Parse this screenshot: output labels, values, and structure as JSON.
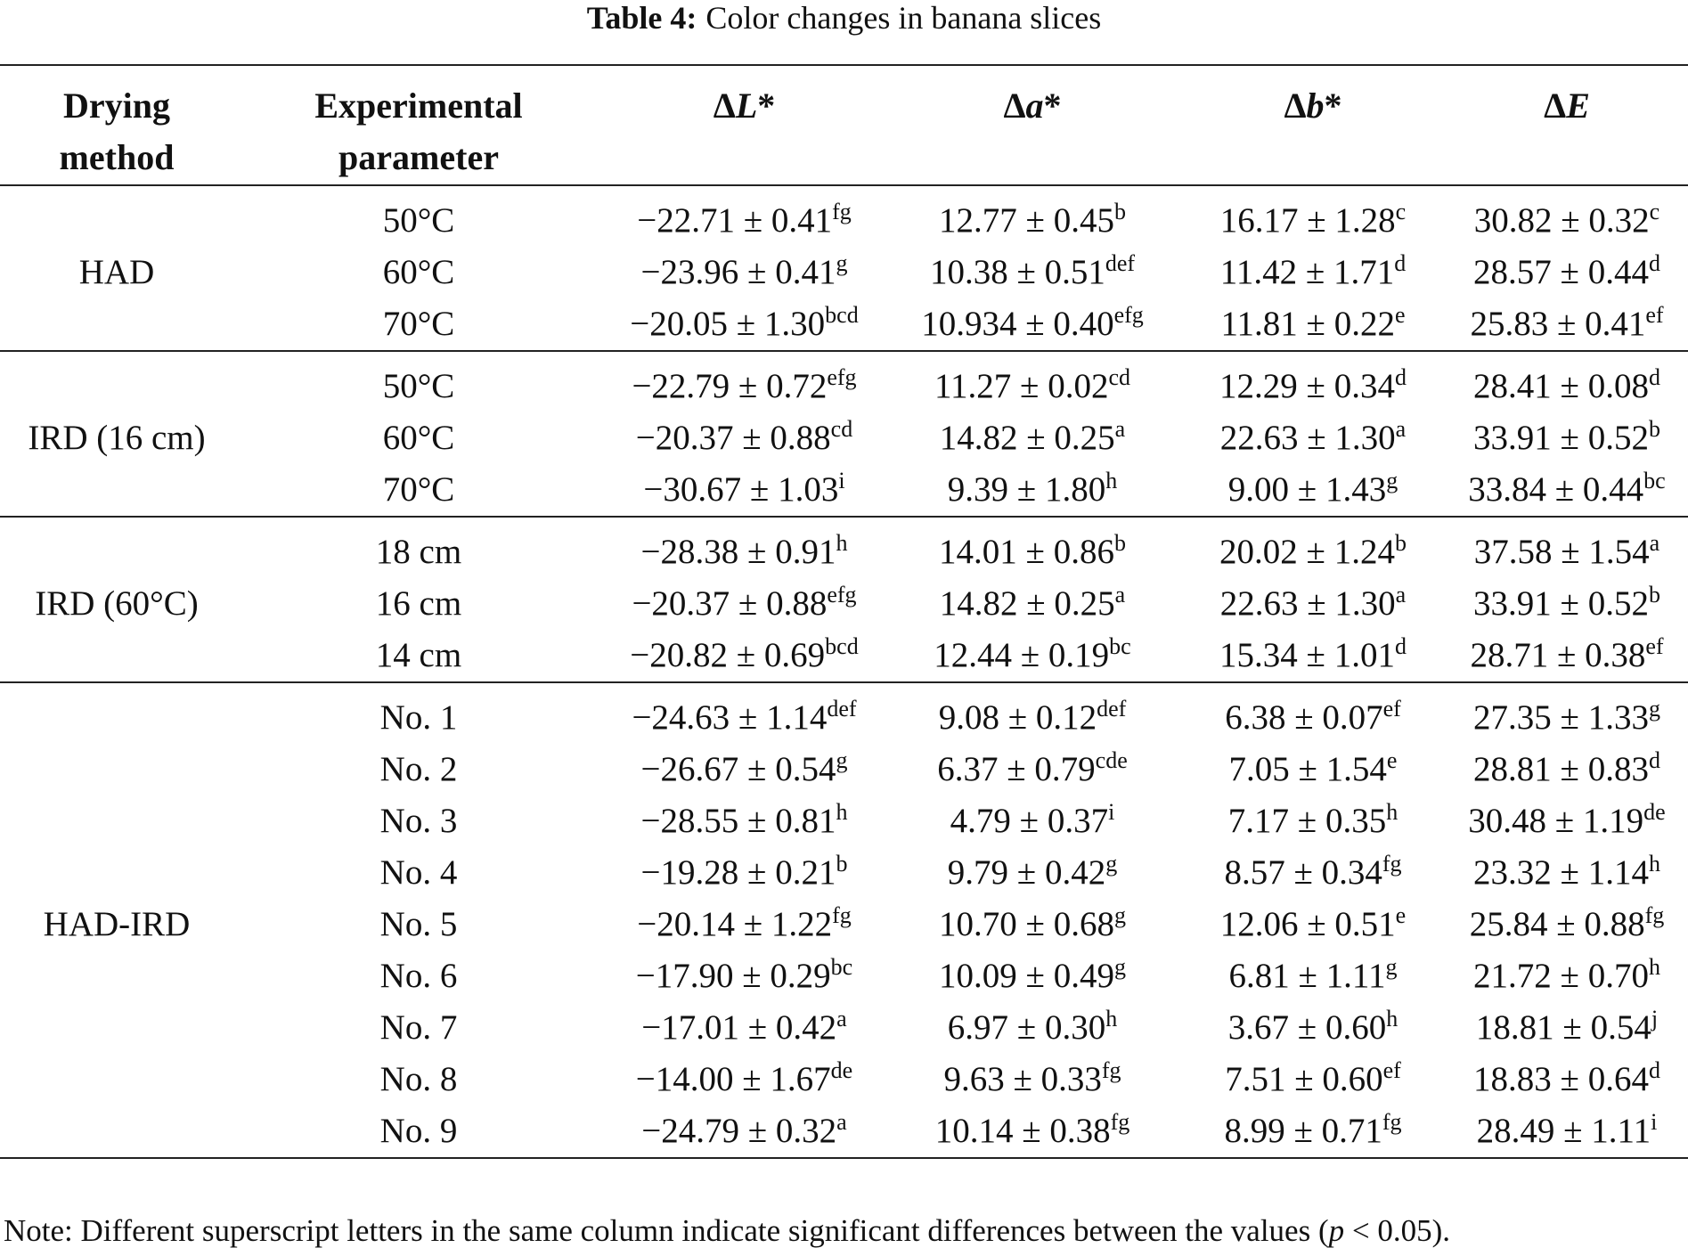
{
  "caption": {
    "label": "Table 4:",
    "text": "Color changes in banana slices"
  },
  "headers": {
    "method_line1": "Drying",
    "method_line2": "method",
    "param_line1": "Experimental",
    "param_line2": "parameter",
    "dL": {
      "delta": "Δ",
      "sym": "L",
      "star": "*"
    },
    "da": {
      "delta": "Δ",
      "sym": "a",
      "star": "*"
    },
    "db": {
      "delta": "Δ",
      "sym": "b",
      "star": "*"
    },
    "dE": {
      "delta": "Δ",
      "sym": "E",
      "star": ""
    }
  },
  "groups": [
    {
      "method": "HAD",
      "rows": [
        {
          "param": "50°C",
          "dL": "−22.71 ± 0.41",
          "dL_sup": "fg",
          "da": "12.77 ± 0.45",
          "da_sup": "b",
          "db": "16.17 ± 1.28",
          "db_sup": "c",
          "dE": "30.82 ± 0.32",
          "dE_sup": "c"
        },
        {
          "param": "60°C",
          "dL": "−23.96 ± 0.41",
          "dL_sup": "g",
          "da": "10.38 ± 0.51",
          "da_sup": "def",
          "db": "11.42 ± 1.71",
          "db_sup": "d",
          "dE": "28.57 ± 0.44",
          "dE_sup": "d"
        },
        {
          "param": "70°C",
          "dL": "−20.05 ± 1.30",
          "dL_sup": "bcd",
          "da": "10.934 ± 0.40",
          "da_sup": "efg",
          "db": "11.81 ± 0.22",
          "db_sup": "e",
          "dE": "25.83 ± 0.41",
          "dE_sup": "ef"
        }
      ]
    },
    {
      "method": "IRD (16 cm)",
      "rows": [
        {
          "param": "50°C",
          "dL": "−22.79 ± 0.72",
          "dL_sup": "efg",
          "da": "11.27 ± 0.02",
          "da_sup": "cd",
          "db": "12.29 ± 0.34",
          "db_sup": "d",
          "dE": "28.41 ± 0.08",
          "dE_sup": "d"
        },
        {
          "param": "60°C",
          "dL": "−20.37 ± 0.88",
          "dL_sup": "cd",
          "da": "14.82 ± 0.25",
          "da_sup": "a",
          "db": "22.63 ± 1.30",
          "db_sup": "a",
          "dE": "33.91 ± 0.52",
          "dE_sup": "b"
        },
        {
          "param": "70°C",
          "dL": "−30.67 ± 1.03",
          "dL_sup": "i",
          "da": "9.39 ± 1.80",
          "da_sup": "h",
          "db": "9.00 ± 1.43",
          "db_sup": "g",
          "dE": "33.84 ± 0.44",
          "dE_sup": "bc"
        }
      ]
    },
    {
      "method": "IRD (60°C)",
      "rows": [
        {
          "param": "18 cm",
          "dL": "−28.38 ± 0.91",
          "dL_sup": "h",
          "da": "14.01 ± 0.86",
          "da_sup": "b",
          "db": "20.02 ± 1.24",
          "db_sup": "b",
          "dE": "37.58 ± 1.54",
          "dE_sup": "a"
        },
        {
          "param": "16 cm",
          "dL": "−20.37 ± 0.88",
          "dL_sup": "efg",
          "da": "14.82 ± 0.25",
          "da_sup": "a",
          "db": "22.63 ± 1.30",
          "db_sup": "a",
          "dE": "33.91 ± 0.52",
          "dE_sup": "b"
        },
        {
          "param": "14 cm",
          "dL": "−20.82 ± 0.69",
          "dL_sup": "bcd",
          "da": "12.44 ± 0.19",
          "da_sup": "bc",
          "db": "15.34 ± 1.01",
          "db_sup": "d",
          "dE": "28.71 ± 0.38",
          "dE_sup": "ef"
        }
      ]
    },
    {
      "method": "HAD-IRD",
      "rows": [
        {
          "param": "No. 1",
          "dL": "−24.63 ± 1.14",
          "dL_sup": "def",
          "da": "9.08 ± 0.12",
          "da_sup": "def",
          "db": "6.38 ± 0.07",
          "db_sup": "ef",
          "dE": "27.35 ± 1.33",
          "dE_sup": "g"
        },
        {
          "param": "No. 2",
          "dL": "−26.67 ± 0.54",
          "dL_sup": "g",
          "da": "6.37 ± 0.79",
          "da_sup": "cde",
          "db": "7.05 ± 1.54",
          "db_sup": "e",
          "dE": "28.81 ± 0.83",
          "dE_sup": "d"
        },
        {
          "param": "No. 3",
          "dL": "−28.55 ± 0.81",
          "dL_sup": "h",
          "da": "4.79 ± 0.37",
          "da_sup": "i",
          "db": "7.17 ± 0.35",
          "db_sup": "h",
          "dE": "30.48 ± 1.19",
          "dE_sup": "de"
        },
        {
          "param": "No. 4",
          "dL": "−19.28 ± 0.21",
          "dL_sup": "b",
          "da": "9.79 ± 0.42",
          "da_sup": "g",
          "db": "8.57 ± 0.34",
          "db_sup": "fg",
          "dE": "23.32 ± 1.14",
          "dE_sup": "h"
        },
        {
          "param": "No. 5",
          "dL": "−20.14 ± 1.22",
          "dL_sup": "fg",
          "da": "10.70 ± 0.68",
          "da_sup": "g",
          "db": "12.06 ± 0.51",
          "db_sup": "e",
          "dE": "25.84 ± 0.88",
          "dE_sup": "fg"
        },
        {
          "param": "No. 6",
          "dL": "−17.90 ± 0.29",
          "dL_sup": "bc",
          "da": "10.09 ± 0.49",
          "da_sup": "g",
          "db": "6.81 ± 1.11",
          "db_sup": "g",
          "dE": "21.72 ± 0.70",
          "dE_sup": "h"
        },
        {
          "param": "No. 7",
          "dL": "−17.01 ± 0.42",
          "dL_sup": "a",
          "da": "6.97 ± 0.30",
          "da_sup": "h",
          "db": "3.67 ± 0.60",
          "db_sup": "h",
          "dE": "18.81 ± 0.54",
          "dE_sup": "j"
        },
        {
          "param": "No. 8",
          "dL": "−14.00 ± 1.67",
          "dL_sup": "de",
          "da": "9.63 ± 0.33",
          "da_sup": "fg",
          "db": "7.51 ± 0.60",
          "db_sup": "ef",
          "dE": "18.83 ± 0.64",
          "dE_sup": "d"
        },
        {
          "param": "No. 9",
          "dL": "−24.79 ± 0.32",
          "dL_sup": "a",
          "da": "10.14 ± 0.38",
          "da_sup": "fg",
          "db": "8.99 ± 0.71",
          "db_sup": "fg",
          "dE": "28.49 ± 1.11",
          "dE_sup": "i"
        }
      ]
    }
  ],
  "note": {
    "before": "Note: Different superscript letters in the same column indicate significant differences between the values (",
    "p": "p",
    "after": " < 0.05)."
  }
}
